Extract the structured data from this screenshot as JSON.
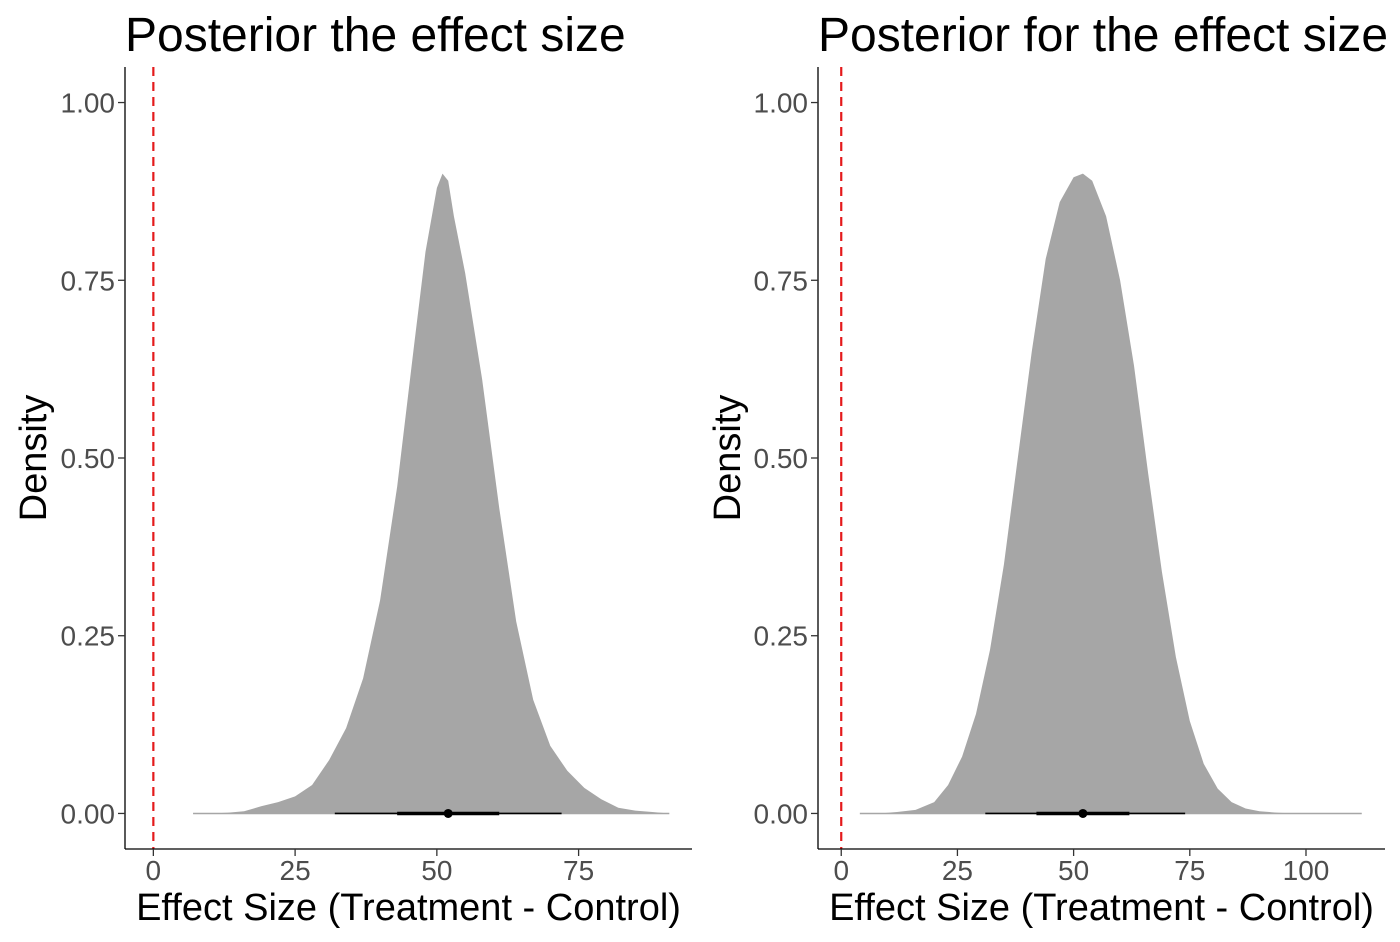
{
  "chart_data": [
    {
      "type": "area",
      "title": "Posterior the effect size",
      "xlabel": "Effect Size (Treatment - Control)",
      "ylabel": "Density",
      "xlim": [
        -5,
        95
      ],
      "ylim": [
        -0.05,
        1.05
      ],
      "x_ticks": [
        0,
        25,
        50,
        75
      ],
      "x_tick_labels": [
        "0",
        "25",
        "50",
        "75"
      ],
      "y_ticks": [
        0,
        0.25,
        0.5,
        0.75,
        1
      ],
      "y_tick_labels": [
        "0.00",
        "0.25",
        "0.50",
        "0.75",
        "1.00"
      ],
      "grid": false,
      "fill_color": "#a6a6a6",
      "reference_line": {
        "x": 0,
        "color": "#e41a1c",
        "style": "dashed"
      },
      "density": {
        "x": [
          7,
          10,
          13,
          16,
          19,
          22,
          25,
          28,
          31,
          34,
          37,
          40,
          43,
          46,
          48,
          50,
          51,
          52,
          53,
          55,
          58,
          61,
          64,
          67,
          70,
          73,
          76,
          79,
          82,
          85,
          88,
          91
        ],
        "y": [
          0.0,
          0.0,
          0.001,
          0.003,
          0.01,
          0.016,
          0.024,
          0.04,
          0.075,
          0.12,
          0.19,
          0.3,
          0.46,
          0.66,
          0.79,
          0.88,
          0.9,
          0.89,
          0.84,
          0.76,
          0.61,
          0.43,
          0.27,
          0.16,
          0.095,
          0.06,
          0.036,
          0.02,
          0.008,
          0.004,
          0.002,
          0.0
        ]
      },
      "interval": {
        "point": 52,
        "inner": [
          43,
          61
        ],
        "outer": [
          32,
          72
        ]
      }
    },
    {
      "type": "area",
      "title": "Posterior for the effect size",
      "xlabel": "Effect Size (Treatment - Control)",
      "ylabel": "Density",
      "xlim": [
        -5,
        117
      ],
      "ylim": [
        -0.05,
        1.05
      ],
      "x_ticks": [
        0,
        25,
        50,
        75,
        100
      ],
      "x_tick_labels": [
        "0",
        "25",
        "50",
        "75",
        "100"
      ],
      "y_ticks": [
        0,
        0.25,
        0.5,
        0.75,
        1
      ],
      "y_tick_labels": [
        "0.00",
        "0.25",
        "0.50",
        "0.75",
        "1.00"
      ],
      "grid": false,
      "fill_color": "#a6a6a6",
      "reference_line": {
        "x": 0,
        "color": "#e41a1c",
        "style": "dashed"
      },
      "density": {
        "x": [
          4,
          8,
          12,
          16,
          20,
          23,
          26,
          29,
          32,
          35,
          38,
          41,
          44,
          47,
          50,
          52,
          54,
          57,
          60,
          63,
          66,
          69,
          72,
          75,
          78,
          81,
          84,
          87,
          90,
          94,
          98,
          103,
          108,
          112
        ],
        "y": [
          0.0,
          0.0,
          0.002,
          0.005,
          0.016,
          0.04,
          0.08,
          0.14,
          0.23,
          0.35,
          0.5,
          0.65,
          0.78,
          0.86,
          0.895,
          0.9,
          0.89,
          0.84,
          0.75,
          0.63,
          0.48,
          0.34,
          0.22,
          0.13,
          0.07,
          0.035,
          0.016,
          0.007,
          0.003,
          0.001,
          0.0,
          0.0,
          0.0,
          0.0
        ]
      },
      "interval": {
        "point": 52,
        "inner": [
          42,
          62
        ],
        "outer": [
          31,
          74
        ]
      }
    }
  ]
}
